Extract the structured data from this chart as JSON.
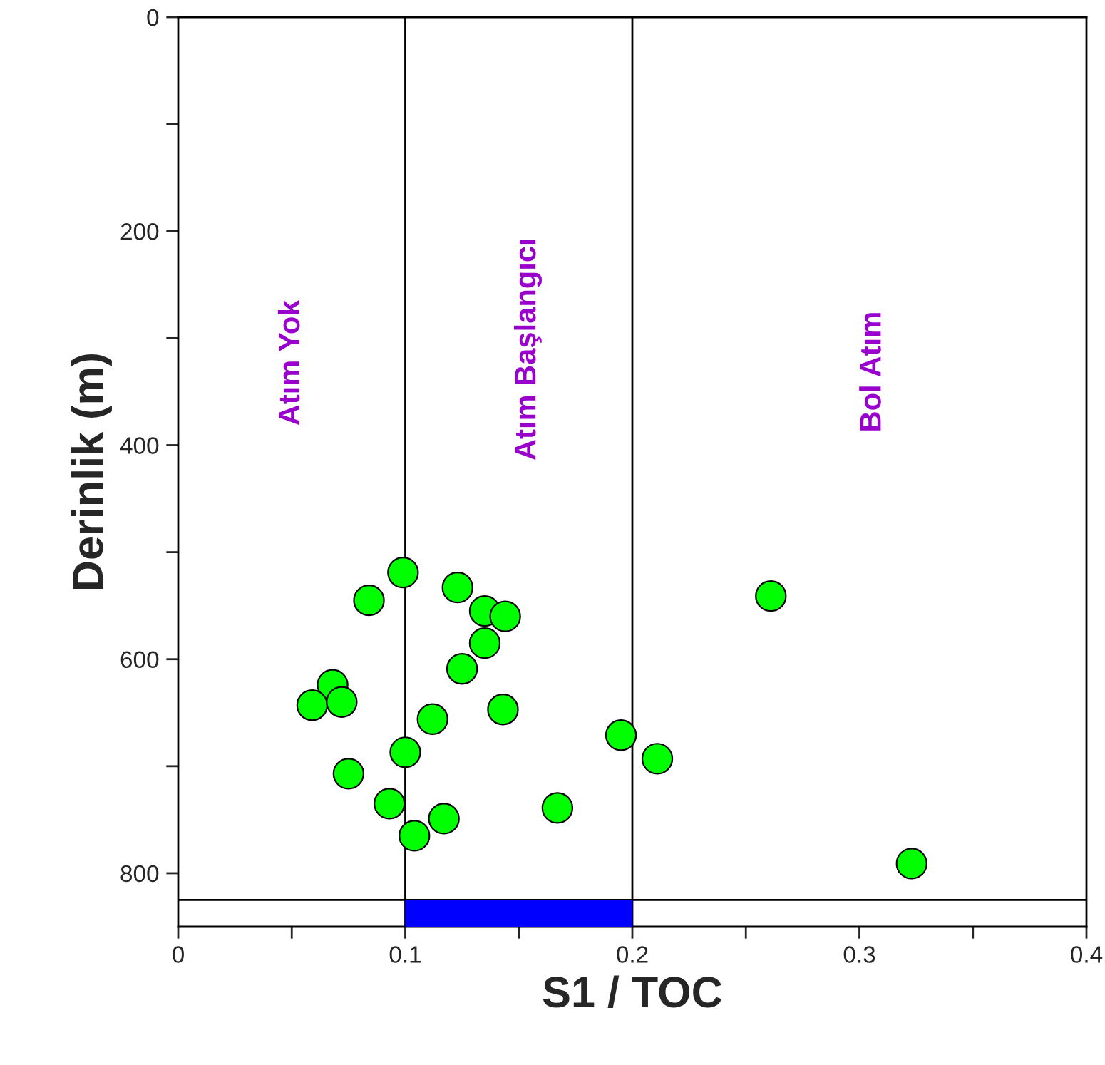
{
  "chart_data": {
    "type": "scatter",
    "xlabel": "S1 / TOC",
    "ylabel": "Derinlik (m)",
    "x": [
      0.099,
      0.084,
      0.123,
      0.135,
      0.144,
      0.135,
      0.125,
      0.068,
      0.059,
      0.072,
      0.143,
      0.112,
      0.1,
      0.195,
      0.211,
      0.075,
      0.093,
      0.117,
      0.104,
      0.167,
      0.261,
      0.323
    ],
    "series": [
      {
        "color": "#00ff00",
        "values": [
          519,
          545,
          533,
          555,
          560,
          585,
          609,
          624,
          643,
          640,
          647,
          656,
          687,
          671,
          693,
          707,
          735,
          749,
          765,
          739,
          541,
          791
        ]
      },
      {
        "type": "bar",
        "color": "#0000ff",
        "x": [
          0.15
        ],
        "values": [
          25
        ],
        "base": [
          825
        ]
      }
    ],
    "marker": "circle",
    "grid": false,
    "legend": false,
    "xlim": [
      0,
      0.4
    ],
    "xticks": [
      0,
      {
        "value": 0.05,
        "label": null
      },
      0.1,
      {
        "value": 0.15,
        "label": null
      },
      0.2,
      {
        "value": 0.25,
        "label": null
      },
      0.3,
      {
        "value": 0.35,
        "label": null
      },
      0.4
    ],
    "ylim": [
      850,
      0
    ],
    "yticks": [
      0,
      {
        "value": 100,
        "label": null
      },
      200,
      {
        "value": 300,
        "label": null
      },
      400,
      {
        "value": 500,
        "label": null
      },
      600,
      {
        "value": 700,
        "label": null
      },
      800
    ],
    "ref_lines": [
      {
        "axis": "x",
        "value": 0.1,
        "color": "#000000"
      },
      {
        "axis": "x",
        "value": 0.2,
        "color": "#000000"
      },
      {
        "axis": "y",
        "value": 825,
        "color": "#000000"
      }
    ],
    "annotations": [
      "Atım Yok",
      "Atım Başlangıcı",
      "Bol Atım"
    ]
  }
}
